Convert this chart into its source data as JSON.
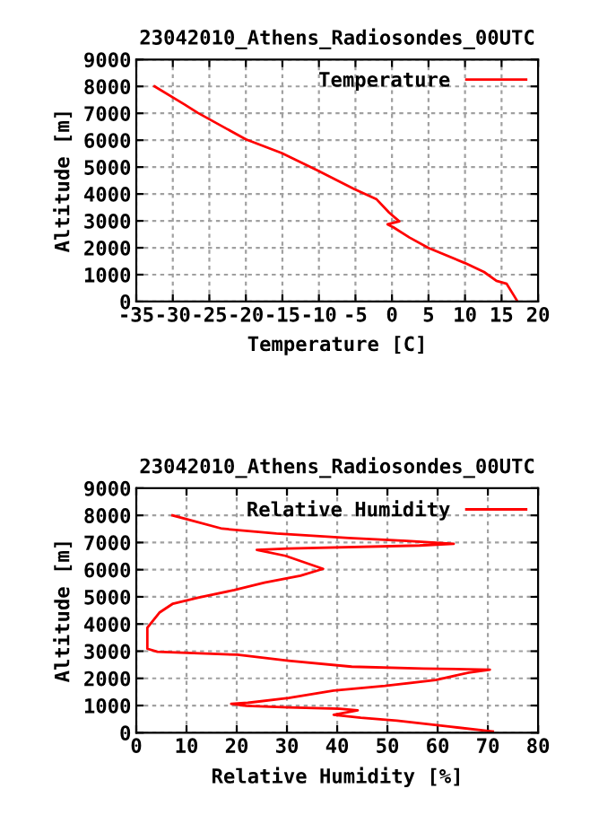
{
  "chart_data": [
    {
      "type": "line",
      "title": "23042010_Athens_Radiosondes_00UTC",
      "xlabel": "Temperature [C]",
      "ylabel": "Altitude [m]",
      "legend": "top right",
      "grid": true,
      "xlim": [
        -35,
        20
      ],
      "xticks": [
        -35,
        -30,
        -25,
        -20,
        -15,
        -10,
        -5,
        0,
        5,
        10,
        15,
        20
      ],
      "ylim": [
        0,
        9000
      ],
      "yticks": [
        0,
        1000,
        2000,
        3000,
        4000,
        5000,
        6000,
        7000,
        8000,
        9000
      ],
      "series": [
        {
          "name": "Temperature",
          "color": "#ff0000",
          "x": [
            -32.5,
            -28.4,
            -26.6,
            -20.0,
            -15.1,
            -10.1,
            -5.2,
            -2.1,
            -0.4,
            1.0,
            -0.6,
            0.2,
            2.4,
            5.0,
            10.0,
            12.6,
            14.3,
            15.7,
            16.7,
            17.1
          ],
          "values": [
            8000,
            7330,
            7020,
            6030,
            5520,
            4860,
            4190,
            3800,
            3310,
            2980,
            2870,
            2760,
            2380,
            1990,
            1430,
            1100,
            770,
            660,
            220,
            40
          ]
        }
      ]
    },
    {
      "type": "line",
      "title": "23042010_Athens_Radiosondes_00UTC",
      "xlabel": "Relative Humidity [%]",
      "ylabel": "Altitude [m]",
      "legend": "top right",
      "grid": true,
      "xlim": [
        0,
        80
      ],
      "xticks": [
        0,
        10,
        20,
        30,
        40,
        50,
        60,
        70,
        80
      ],
      "ylim": [
        0,
        9000
      ],
      "yticks": [
        0,
        1000,
        2000,
        3000,
        4000,
        5000,
        6000,
        7000,
        8000,
        9000
      ],
      "series": [
        {
          "name": "Relative Humidity",
          "color": "#ff0000",
          "x": [
            7.2,
            17.1,
            27.9,
            42.3,
            53.9,
            63.2,
            56.4,
            30.3,
            24.0,
            29.7,
            37.2,
            32.7,
            25.5,
            19.5,
            12.3,
            7.3,
            4.6,
            2.2,
            2.2,
            4.2,
            20.1,
            30.3,
            42.9,
            57.2,
            70.4,
            66.2,
            59.6,
            49.5,
            39.3,
            30.3,
            22.2,
            18.9,
            21.9,
            30.3,
            40.5,
            44.1,
            39.3,
            44.7,
            51.9,
            62.6,
            71.0
          ],
          "values": [
            8000,
            7510,
            7330,
            7170,
            7060,
            6950,
            6890,
            6780,
            6730,
            6510,
            6030,
            5780,
            5520,
            5250,
            4970,
            4750,
            4420,
            3860,
            3090,
            2980,
            2870,
            2650,
            2430,
            2360,
            2320,
            2210,
            1940,
            1720,
            1550,
            1280,
            1100,
            1060,
            990,
            930,
            880,
            820,
            660,
            550,
            440,
            220,
            40
          ]
        }
      ]
    }
  ]
}
